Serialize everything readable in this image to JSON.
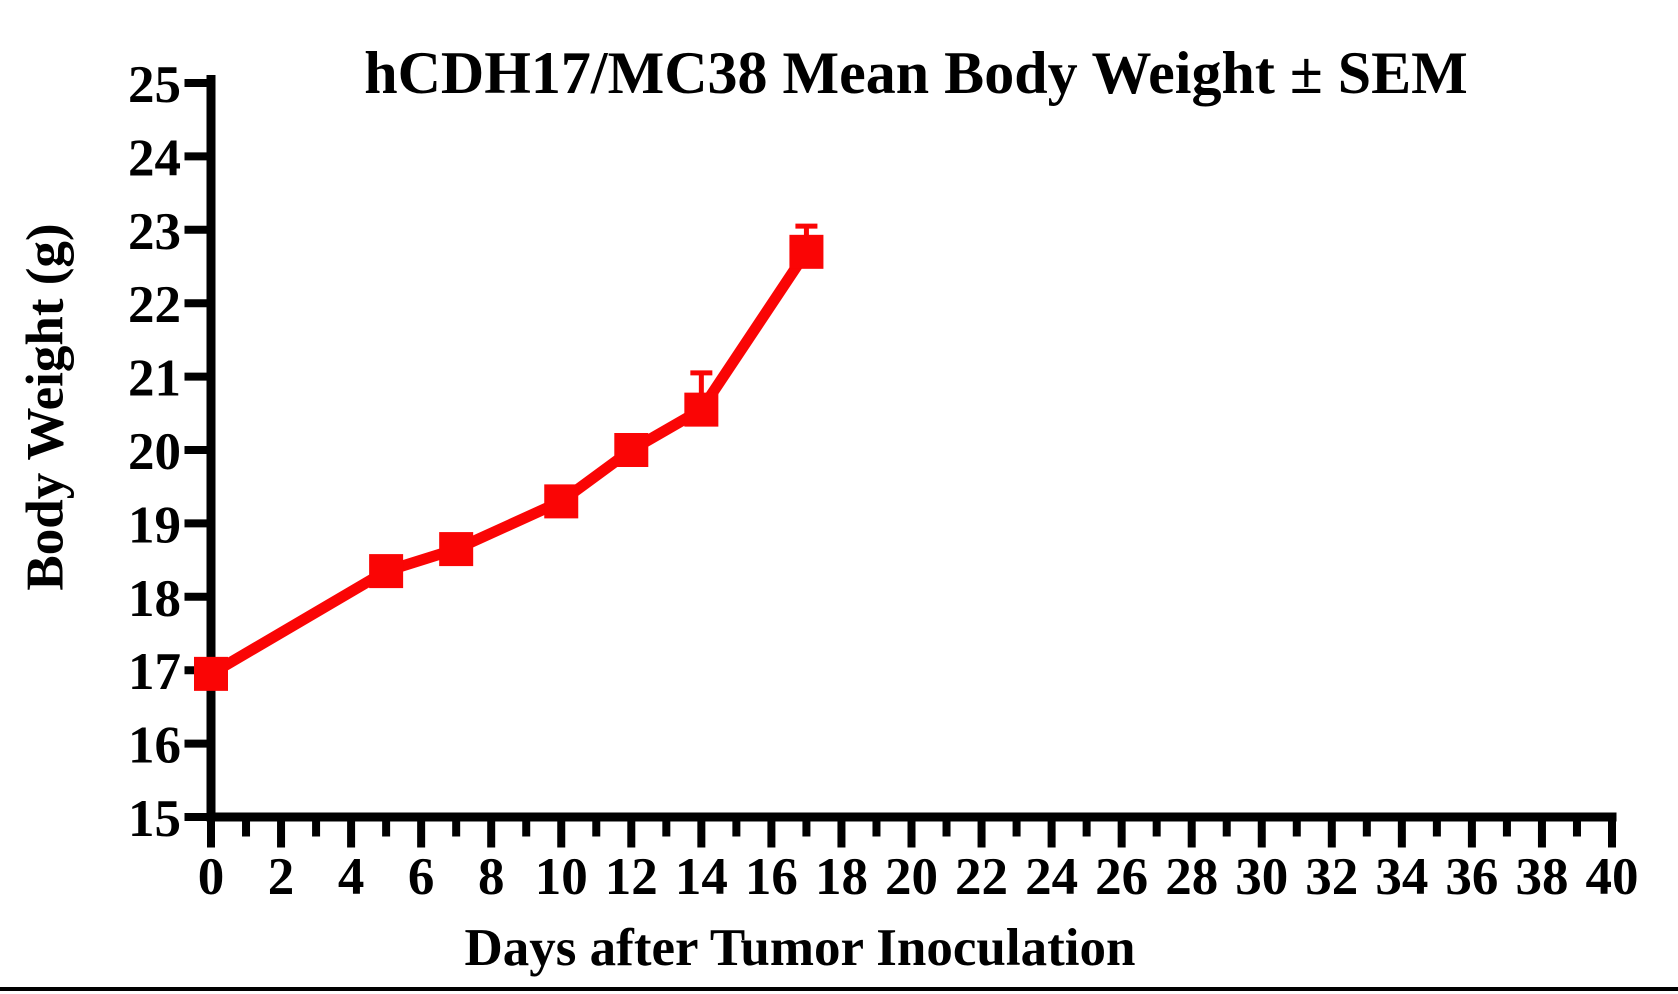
{
  "page": {
    "background": "#ffffff",
    "bottom_rule_color": "#000000"
  },
  "chart_data": {
    "type": "line",
    "title": "hCDH17/MC38 Mean Body Weight ± SEM",
    "xlabel": "Days after Tumor Inoculation",
    "ylabel": "Body Weight (g)",
    "xlim": [
      0,
      40
    ],
    "ylim": [
      15,
      25
    ],
    "grid": false,
    "legend": "none",
    "axis_color": "#000000",
    "x_tick_step_major": 2,
    "x_tick_step_minor": 1,
    "y_tick_step": 1,
    "x_tick_labels": [
      "0",
      "2",
      "4",
      "6",
      "8",
      "10",
      "12",
      "14",
      "16",
      "18",
      "20",
      "22",
      "24",
      "26",
      "28",
      "30",
      "32",
      "34",
      "36",
      "38",
      "40"
    ],
    "y_tick_labels": [
      "15",
      "16",
      "17",
      "18",
      "19",
      "20",
      "21",
      "22",
      "23",
      "24",
      "25"
    ],
    "series": [
      {
        "name": "hCDH17/MC38 mean body weight",
        "color": "#FA0505",
        "marker": "square",
        "x": [
          0,
          5,
          7,
          10,
          12,
          14,
          17
        ],
        "y": [
          16.95,
          18.35,
          18.65,
          19.3,
          20.0,
          20.55,
          22.7
        ],
        "sem_upper": [
          0,
          0,
          0,
          0,
          0,
          0.5,
          0.35
        ]
      }
    ]
  }
}
